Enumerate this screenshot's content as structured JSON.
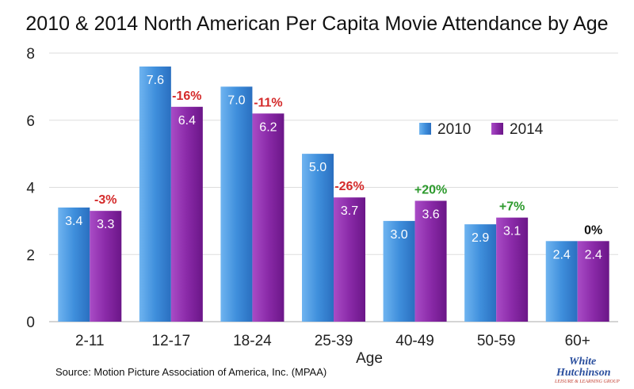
{
  "chart_data": {
    "type": "bar",
    "title": "2010 & 2014 North American Per Capita Movie Attendance by Age",
    "xlabel": "Age",
    "ylabel": "",
    "ylim": [
      0,
      8
    ],
    "yticks": [
      "0",
      "2",
      "4",
      "6",
      "8"
    ],
    "grid": true,
    "legend": "top-right",
    "categories": [
      "2-11",
      "12-17",
      "18-24",
      "25-39",
      "40-49",
      "50-59",
      "60+"
    ],
    "series": [
      {
        "name": "2010",
        "values": [
          3.4,
          7.6,
          7.0,
          5.0,
          3.0,
          2.9,
          2.4
        ],
        "labels": [
          "3.4",
          "7.6",
          "7.0",
          "5.0",
          "3.0",
          "2.9",
          "2.4"
        ],
        "color": "#3f8fdc"
      },
      {
        "name": "2014",
        "values": [
          3.3,
          6.4,
          6.2,
          3.7,
          3.6,
          3.1,
          2.4
        ],
        "labels": [
          "3.3",
          "6.4",
          "6.2",
          "3.7",
          "3.6",
          "3.1",
          "2.4"
        ],
        "color": "#8a2aa8"
      }
    ],
    "changes": [
      {
        "text": "-3%",
        "color": "#d42a2a"
      },
      {
        "text": "-16%",
        "color": "#d42a2a"
      },
      {
        "text": "-11%",
        "color": "#d42a2a"
      },
      {
        "text": "-26%",
        "color": "#d42a2a"
      },
      {
        "text": "+20%",
        "color": "#2d9a2d"
      },
      {
        "text": "+7%",
        "color": "#2d9a2d"
      },
      {
        "text": "0%",
        "color": "#111111"
      }
    ],
    "source": "Source: Motion Picture Association of America, Inc. (MPAA)"
  },
  "logo": {
    "line1": "White",
    "line2": "Hutchinson",
    "line3": "LEISURE & LEARNING GROUP"
  }
}
